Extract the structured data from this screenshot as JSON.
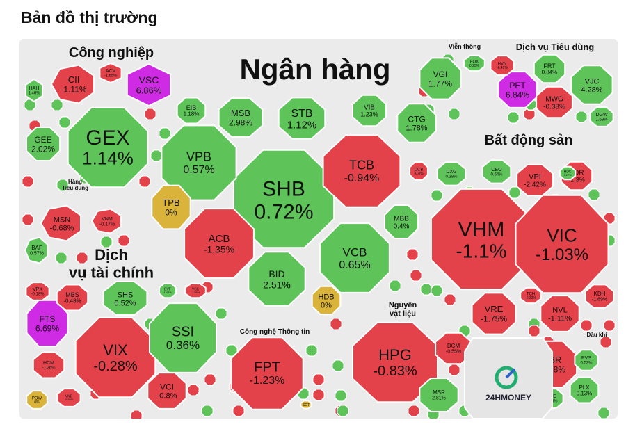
{
  "page": {
    "title": "Bản đồ thị trường"
  },
  "brand": {
    "logo_text": "24HMONEY"
  },
  "colors": {
    "up": "#5ec45a",
    "up_light": "#8ad584",
    "down": "#e3424a",
    "down_light": "#ee8f93",
    "ceiling": "#d02be4",
    "flat": "#d9b33a",
    "sector_bg": "#ebebeb",
    "border": "#ffffff",
    "logo_green": "#1fae6f",
    "logo_blue": "#2a64c8"
  },
  "chart_data": {
    "type": "treemap",
    "title": "Bản đồ thị trường",
    "sectors": [
      {
        "name": "Ngân hàng",
        "tickers": [
          {
            "ticker": "SHB",
            "change": "0.72%"
          },
          {
            "ticker": "TCB",
            "change": "-0.94%"
          },
          {
            "ticker": "VPB",
            "change": "0.57%"
          },
          {
            "ticker": "MSB",
            "change": "2.98%"
          },
          {
            "ticker": "STB",
            "change": "1.12%"
          },
          {
            "ticker": "VIB",
            "change": "1.23%"
          },
          {
            "ticker": "CTG",
            "change": "1.78%"
          },
          {
            "ticker": "EIB",
            "change": "1.18%"
          },
          {
            "ticker": "TPB",
            "change": "0%"
          },
          {
            "ticker": "ACB",
            "change": "-1.35%"
          },
          {
            "ticker": "BID",
            "change": "2.51%"
          },
          {
            "ticker": "VCB",
            "change": "0.65%"
          },
          {
            "ticker": "MBB",
            "change": "0.4%"
          },
          {
            "ticker": "HDB",
            "change": "0%"
          },
          {
            "ticker": "DCB",
            "change": "-0.8%"
          }
        ]
      },
      {
        "name": "Công nghiệp",
        "tickers": [
          {
            "ticker": "GEX",
            "change": "1.14%"
          },
          {
            "ticker": "CII",
            "change": "-1.11%"
          },
          {
            "ticker": "VSC",
            "change": "6.86%"
          },
          {
            "ticker": "ACV",
            "change": "-1.65%"
          },
          {
            "ticker": "HAH",
            "change": "1.46%"
          },
          {
            "ticker": "GEE",
            "change": "2.02%"
          }
        ]
      },
      {
        "name": "Hàng Tiêu dùng",
        "tickers": [
          {
            "ticker": "MSN",
            "change": "-0.68%"
          },
          {
            "ticker": "VNM",
            "change": "-0.17%"
          },
          {
            "ticker": "BAF",
            "change": "0.57%"
          }
        ]
      },
      {
        "name": "Dịch vụ tài chính",
        "tickers": [
          {
            "ticker": "VIX",
            "change": "-0.28%"
          },
          {
            "ticker": "SSI",
            "change": "0.36%"
          },
          {
            "ticker": "SHS",
            "change": "0.52%"
          },
          {
            "ticker": "FTS",
            "change": "6.69%"
          },
          {
            "ticker": "MBS",
            "change": "-0.48%"
          },
          {
            "ticker": "VCI",
            "change": "-0.8%"
          },
          {
            "ticker": "VPX",
            "change": "-0.18%"
          },
          {
            "ticker": "EVF",
            "change": "1.43%"
          },
          {
            "ticker": "VCK",
            "change": "-1.58%"
          },
          {
            "ticker": "HCM",
            "change": "-1.26%"
          },
          {
            "ticker": "VND",
            "change": "-0.55%"
          },
          {
            "ticker": "POW",
            "change": "0%"
          }
        ]
      },
      {
        "name": "Viễn thông",
        "tickers": [
          {
            "ticker": "VGI",
            "change": "1.77%"
          },
          {
            "ticker": "FOX",
            "change": "0.25%"
          }
        ]
      },
      {
        "name": "Dịch vụ Tiêu dùng",
        "tickers": [
          {
            "ticker": "PET",
            "change": "6.84%"
          },
          {
            "ticker": "MWG",
            "change": "-0.38%"
          },
          {
            "ticker": "VJC",
            "change": "4.28%"
          },
          {
            "ticker": "FRT",
            "change": "0.84%"
          },
          {
            "ticker": "HVN",
            "change": "-6.42%"
          },
          {
            "ticker": "DGW",
            "change": "1.69%"
          }
        ]
      },
      {
        "name": "Bất động sản",
        "tickers": [
          {
            "ticker": "VHM",
            "change": "-1.1%"
          },
          {
            "ticker": "VIC",
            "change": "-1.03%"
          },
          {
            "ticker": "VRE",
            "change": "-1.75%"
          },
          {
            "ticker": "NVL",
            "change": "-1.11%"
          },
          {
            "ticker": "VPI",
            "change": "-2.42%"
          },
          {
            "ticker": "PDR",
            "change": "-1.3%"
          },
          {
            "ticker": "KDH",
            "change": "-1.69%"
          },
          {
            "ticker": "TCH",
            "change": "-0.33%"
          },
          {
            "ticker": "DXG",
            "change": "0.38%"
          },
          {
            "ticker": "CEO",
            "change": "0.64%"
          },
          {
            "ticker": "HDC",
            "change": "0.27%"
          }
        ]
      },
      {
        "name": "Công nghệ Thông tin",
        "tickers": [
          {
            "ticker": "FPT",
            "change": "-1.23%"
          },
          {
            "ticker": "SGT",
            "change": ""
          }
        ]
      },
      {
        "name": "Nguyên vật liệu",
        "tickers": [
          {
            "ticker": "HPG",
            "change": "-0.83%"
          },
          {
            "ticker": "DCM",
            "change": "-0.55%"
          },
          {
            "ticker": "MSR",
            "change": "2.81%"
          }
        ]
      },
      {
        "name": "Dầu khí",
        "tickers": [
          {
            "ticker": "BSR",
            "change": "-1.68%"
          },
          {
            "ticker": "PVS",
            "change": "0.53%"
          },
          {
            "ticker": "PLX",
            "change": "0.13%"
          },
          {
            "ticker": "PVD",
            "change": "0.33%"
          }
        ]
      }
    ]
  }
}
